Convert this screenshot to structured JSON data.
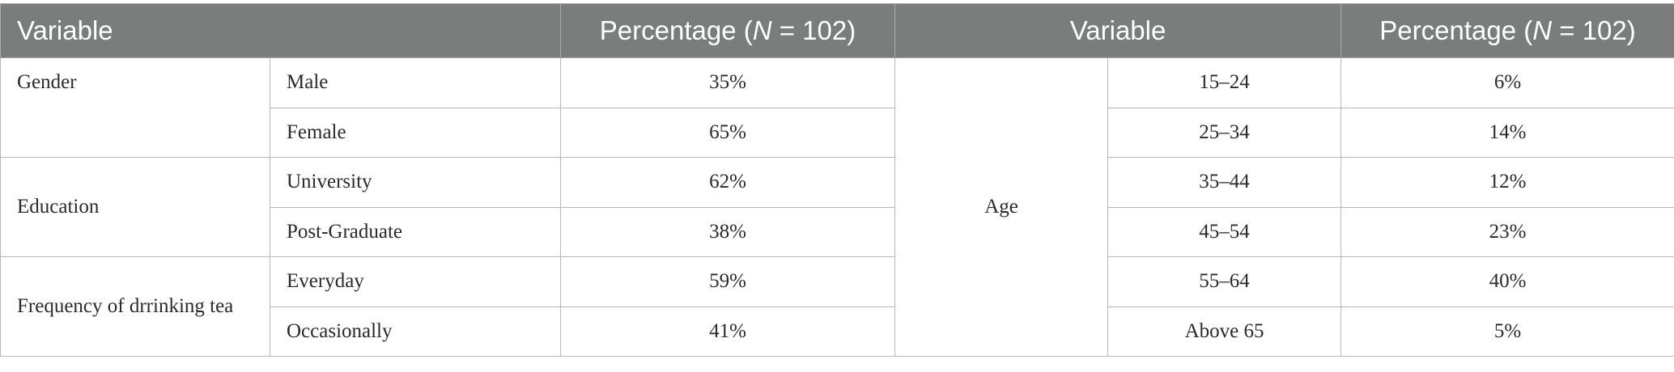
{
  "header": {
    "variable_left": "Variable",
    "pct_left_prefix": "Percentage (",
    "pct_left_n": "N",
    "pct_left_suffix": " = 102)",
    "variable_right": "Variable",
    "pct_right_prefix": "Percentage (",
    "pct_right_n": "N",
    "pct_right_suffix": " = 102)"
  },
  "left": {
    "gender": {
      "label": "Gender",
      "rows": [
        {
          "name": "Male",
          "pct": "35%"
        },
        {
          "name": "Female",
          "pct": "65%"
        }
      ]
    },
    "education": {
      "label": "Education",
      "rows": [
        {
          "name": "University",
          "pct": "62%"
        },
        {
          "name": "Post-Graduate",
          "pct": "38%"
        }
      ]
    },
    "frequency": {
      "label": "Frequency of drrinking tea",
      "rows": [
        {
          "name": "Everyday",
          "pct": "59%"
        },
        {
          "name": "Occasionally",
          "pct": "41%"
        }
      ]
    }
  },
  "right": {
    "label": "Age",
    "rows": [
      {
        "range": "15–24",
        "pct": "6%"
      },
      {
        "range": "25–34",
        "pct": "14%"
      },
      {
        "range": "35–44",
        "pct": "12%"
      },
      {
        "range": "45–54",
        "pct": "23%"
      },
      {
        "range": "55–64",
        "pct": "40%"
      },
      {
        "range": "Above 65",
        "pct": "5%"
      }
    ]
  }
}
